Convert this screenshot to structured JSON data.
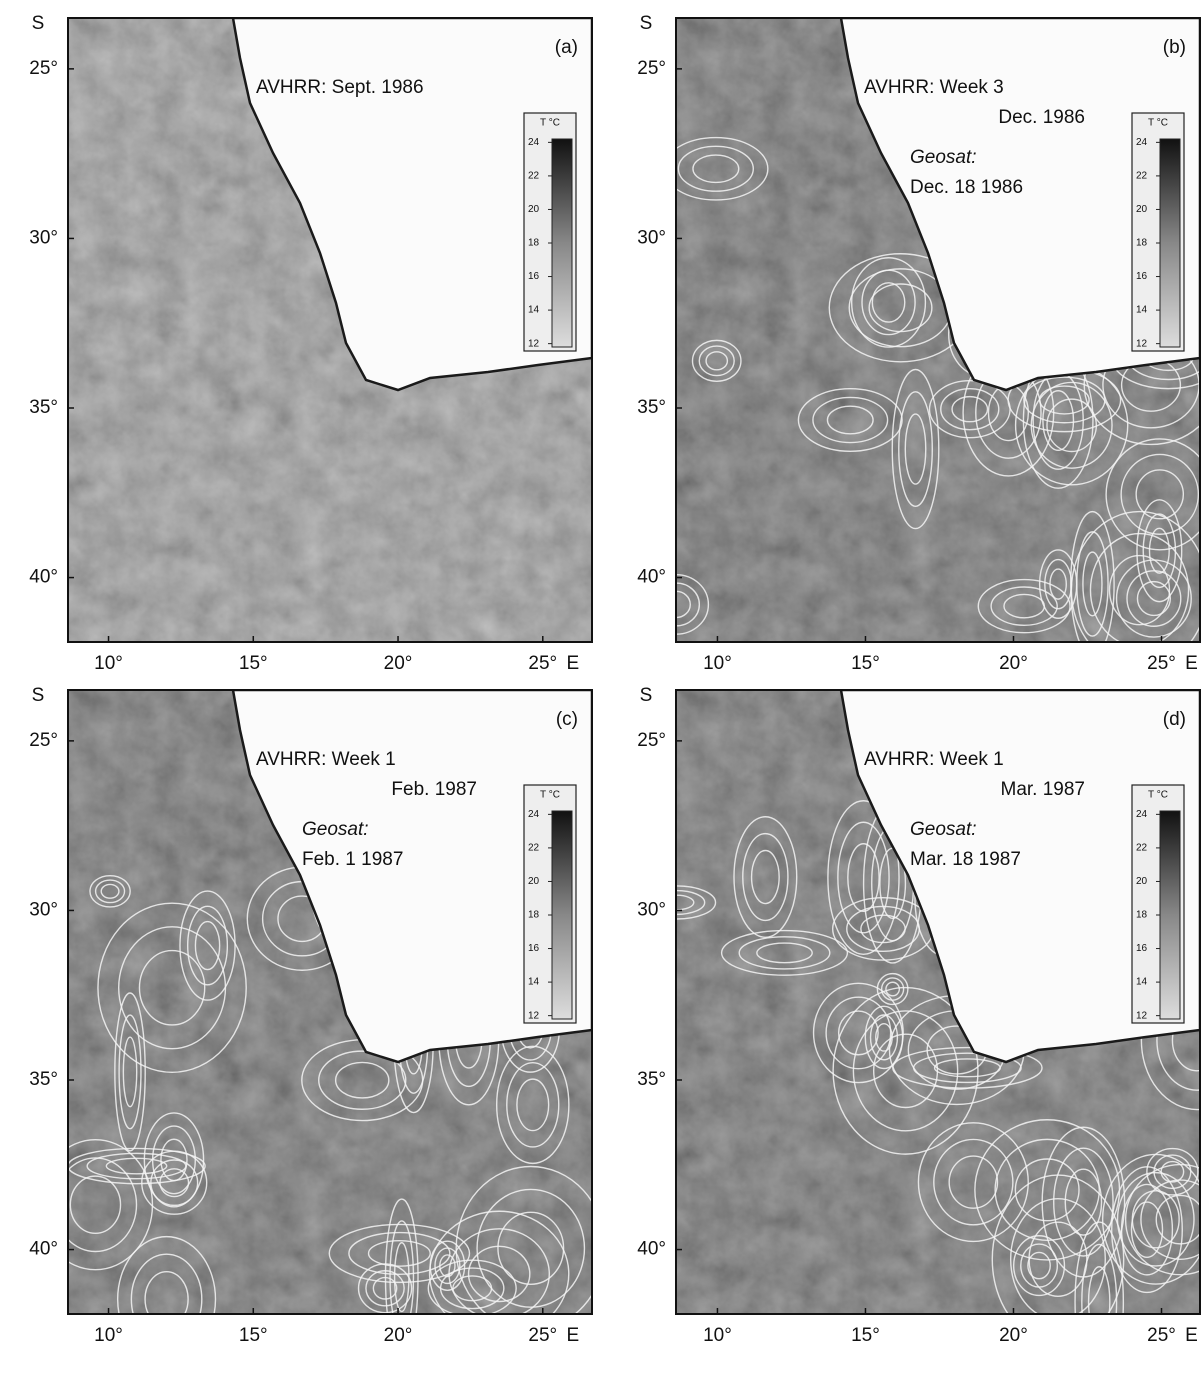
{
  "panels": [
    {
      "label": "(a)",
      "lat_hemisphere": "S",
      "lon_hemisphere": "E",
      "lat_range": [
        23.5,
        41.9
      ],
      "lon_range": [
        8.6,
        26.7
      ],
      "lat_ticks": [
        {
          "value": 25,
          "label": "25°"
        },
        {
          "value": 30,
          "label": "30°"
        },
        {
          "value": 35,
          "label": "35°"
        },
        {
          "value": 40,
          "label": "40°"
        }
      ],
      "lon_ticks": [
        {
          "value": 10,
          "label": "10°"
        },
        {
          "value": 15,
          "label": "15°"
        },
        {
          "value": 20,
          "label": "20°"
        },
        {
          "value": 25,
          "label": "25°"
        }
      ],
      "avhrr": [
        "AVHRR: Sept. 1986"
      ],
      "colorbar": {
        "title": "T °C",
        "range": [
          11.8,
          24.2
        ],
        "ticks": [
          24,
          22,
          20,
          18,
          16,
          14,
          12
        ]
      }
    },
    {
      "label": "(b)",
      "lat_hemisphere": "S",
      "lon_hemisphere": "E",
      "lat_range": [
        23.5,
        41.9
      ],
      "lon_range": [
        8.6,
        26.3
      ],
      "lat_ticks": [
        {
          "value": 25,
          "label": "25°"
        },
        {
          "value": 30,
          "label": "30°"
        },
        {
          "value": 35,
          "label": "35°"
        },
        {
          "value": 40,
          "label": "40°"
        }
      ],
      "lon_ticks": [
        {
          "value": 10,
          "label": "10°"
        },
        {
          "value": 15,
          "label": "15°"
        },
        {
          "value": 20,
          "label": "20°"
        },
        {
          "value": 25,
          "label": "25°"
        }
      ],
      "avhrr": [
        "AVHRR: Week 3",
        "Dec. 1986"
      ],
      "geosat": [
        "Geosat:",
        "Dec. 18 1986"
      ],
      "colorbar": {
        "title": "T °C",
        "range": [
          11.8,
          24.2
        ],
        "ticks": [
          24,
          22,
          20,
          18,
          16,
          14,
          12
        ]
      }
    },
    {
      "label": "(c)",
      "lat_hemisphere": "S",
      "lon_hemisphere": "E",
      "lat_range": [
        23.5,
        41.9
      ],
      "lon_range": [
        8.6,
        26.7
      ],
      "lat_ticks": [
        {
          "value": 25,
          "label": "25°"
        },
        {
          "value": 30,
          "label": "30°"
        },
        {
          "value": 35,
          "label": "35°"
        },
        {
          "value": 40,
          "label": "40°"
        }
      ],
      "lon_ticks": [
        {
          "value": 10,
          "label": "10°"
        },
        {
          "value": 15,
          "label": "15°"
        },
        {
          "value": 20,
          "label": "20°"
        },
        {
          "value": 25,
          "label": "25°"
        }
      ],
      "avhrr": [
        "AVHRR: Week 1",
        "Feb. 1987"
      ],
      "geosat": [
        "Geosat:",
        "Feb. 1 1987"
      ],
      "colorbar": {
        "title": "T °C",
        "range": [
          11.8,
          24.2
        ],
        "ticks": [
          24,
          22,
          20,
          18,
          16,
          14,
          12
        ]
      }
    },
    {
      "label": "(d)",
      "lat_hemisphere": "S",
      "lon_hemisphere": "E",
      "lat_range": [
        23.5,
        41.9
      ],
      "lon_range": [
        8.6,
        26.3
      ],
      "lat_ticks": [
        {
          "value": 25,
          "label": "25°"
        },
        {
          "value": 30,
          "label": "30°"
        },
        {
          "value": 35,
          "label": "35°"
        },
        {
          "value": 40,
          "label": "40°"
        }
      ],
      "lon_ticks": [
        {
          "value": 10,
          "label": "10°"
        },
        {
          "value": 15,
          "label": "15°"
        },
        {
          "value": 20,
          "label": "20°"
        },
        {
          "value": 25,
          "label": "25°"
        }
      ],
      "avhrr": [
        "AVHRR: Week 1",
        "Mar. 1987"
      ],
      "geosat": [
        "Geosat:",
        "Mar. 18 1987"
      ],
      "colorbar": {
        "title": "T °C",
        "range": [
          11.8,
          24.2
        ],
        "ticks": [
          24,
          22,
          20,
          18,
          16,
          14,
          12
        ]
      }
    }
  ]
}
